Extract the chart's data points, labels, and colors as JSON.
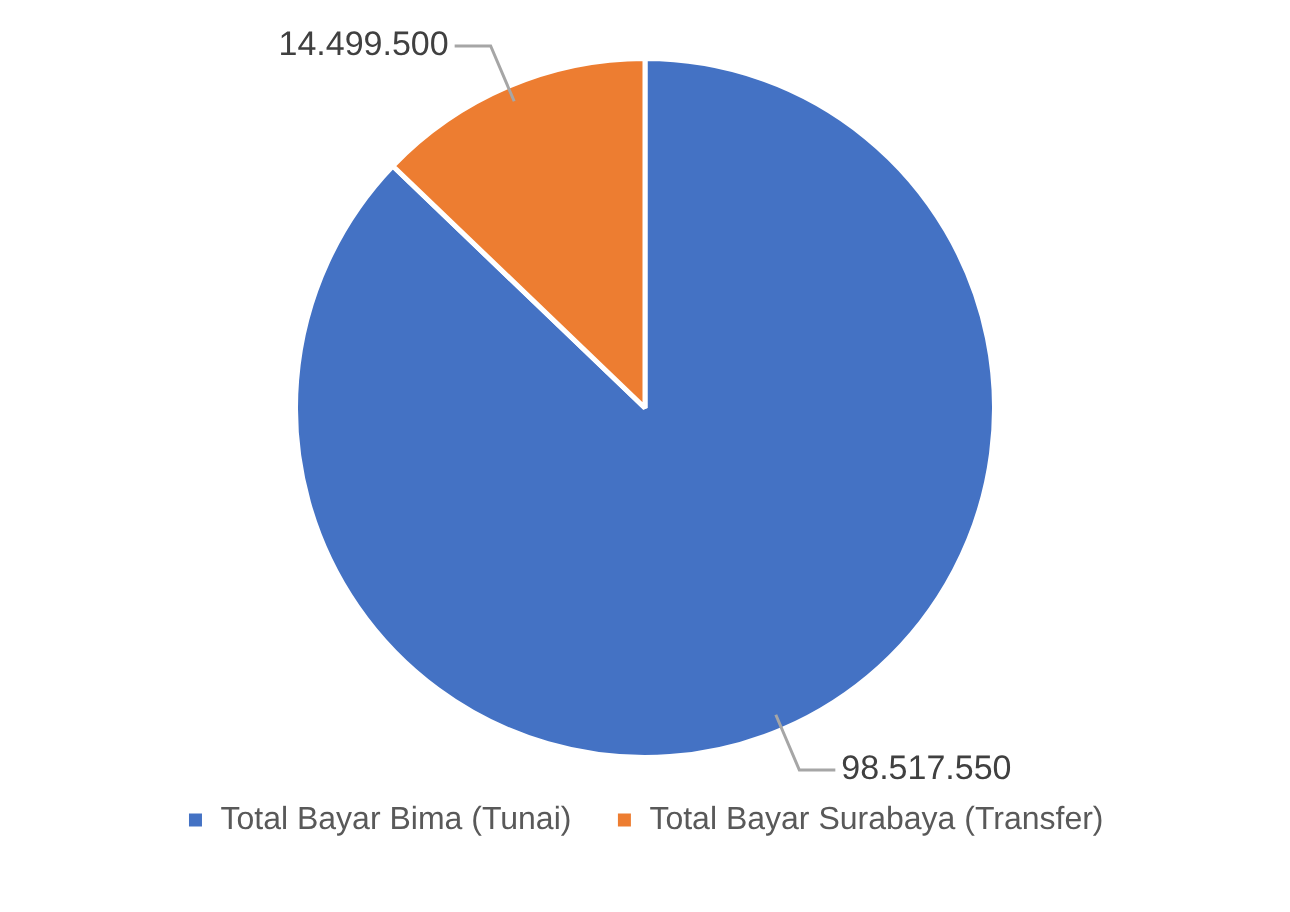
{
  "chart_data": {
    "type": "pie",
    "categories": [
      "Total Bayar Bima (Tunai)",
      "Total Bayar Surabaya (Transfer)"
    ],
    "values": [
      98517550,
      14499500
    ],
    "colors": [
      "#4472c4",
      "#ed7d31"
    ],
    "value_labels": [
      "98.517.550",
      "14.499.500"
    ],
    "legend": "bottom"
  }
}
